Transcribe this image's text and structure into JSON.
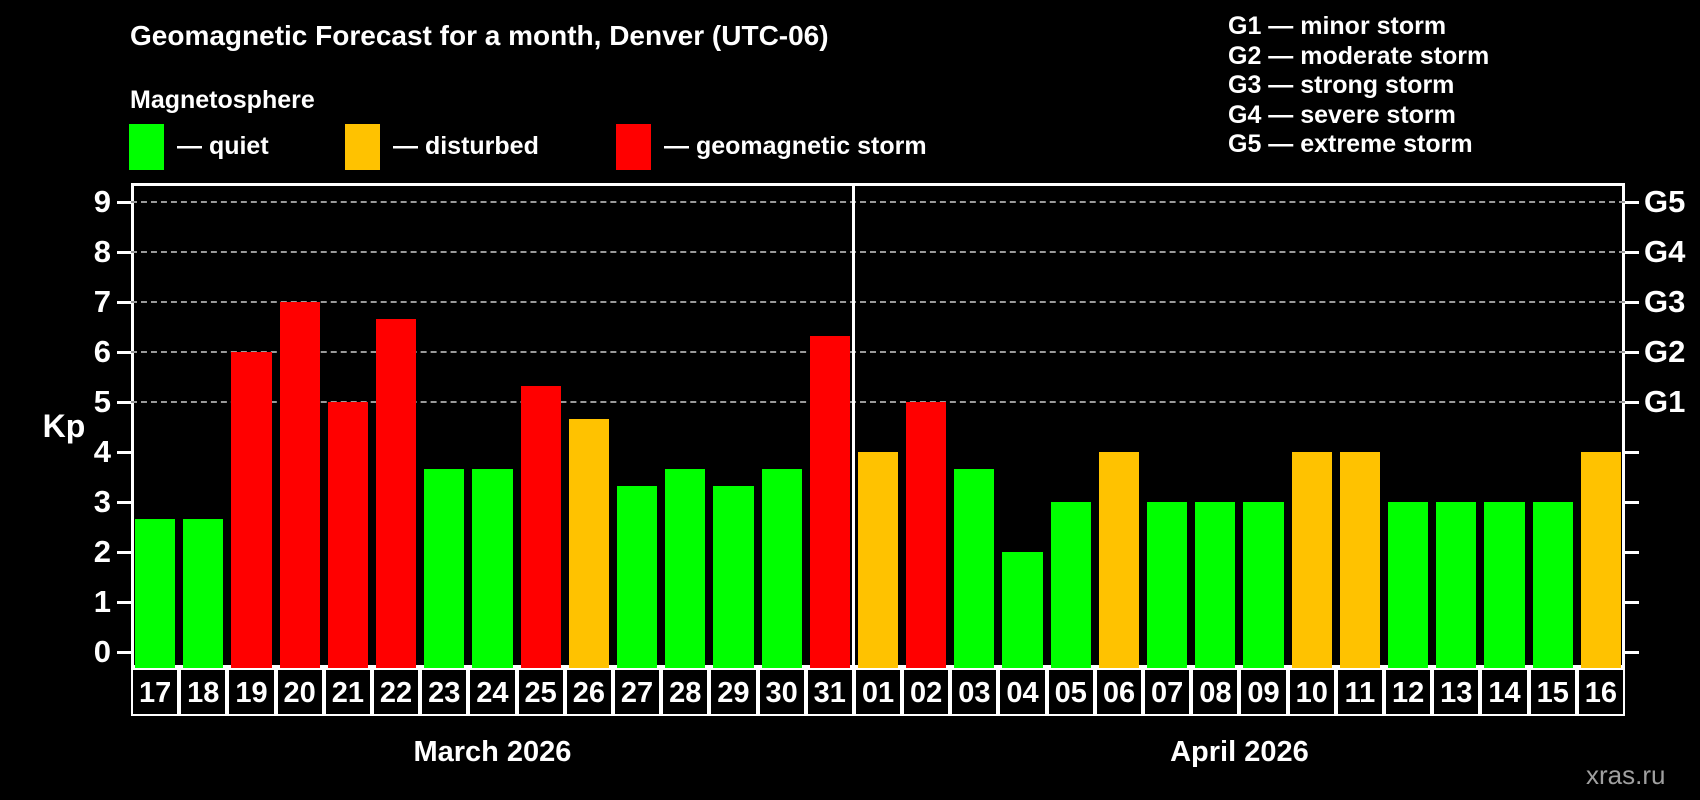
{
  "title": "Geomagnetic Forecast for a month, Denver (UTC-06)",
  "subtitle": "Magnetosphere",
  "watermark": "xras.ru",
  "legend": {
    "items": [
      {
        "key": "quiet",
        "label": "— quiet",
        "color": "#00ff00"
      },
      {
        "key": "disturbed",
        "label": "— disturbed",
        "color": "#ffc200"
      },
      {
        "key": "storm",
        "label": "— geomagnetic storm",
        "color": "#ff0000"
      }
    ]
  },
  "g_legend": {
    "lines": [
      "G1 — minor storm",
      "G2 — moderate storm",
      "G3 — strong storm",
      "G4 — severe storm",
      "G5 — extreme storm"
    ]
  },
  "chart_data": {
    "type": "bar",
    "ylabel": "Kp",
    "ylim": [
      0,
      9
    ],
    "yticks": [
      0,
      1,
      2,
      3,
      4,
      5,
      6,
      7,
      8,
      9
    ],
    "gridlines": [
      5,
      6,
      7,
      8,
      9
    ],
    "grid_color": "#9a9a9a",
    "right_axis_labels": [
      {
        "label": "G1",
        "value": 5
      },
      {
        "label": "G2",
        "value": 6
      },
      {
        "label": "G3",
        "value": 7
      },
      {
        "label": "G4",
        "value": 8
      },
      {
        "label": "G5",
        "value": 9
      }
    ],
    "status_colors": {
      "quiet": "#00ff00",
      "disturbed": "#ffc200",
      "storm": "#ff0000"
    },
    "months": [
      {
        "label": "March 2026",
        "days": [
          {
            "day": "17",
            "kp": 2.67,
            "status": "quiet"
          },
          {
            "day": "18",
            "kp": 2.67,
            "status": "quiet"
          },
          {
            "day": "19",
            "kp": 6.0,
            "status": "storm"
          },
          {
            "day": "20",
            "kp": 7.0,
            "status": "storm"
          },
          {
            "day": "21",
            "kp": 5.0,
            "status": "storm"
          },
          {
            "day": "22",
            "kp": 6.67,
            "status": "storm"
          },
          {
            "day": "23",
            "kp": 3.67,
            "status": "quiet"
          },
          {
            "day": "24",
            "kp": 3.67,
            "status": "quiet"
          },
          {
            "day": "25",
            "kp": 5.33,
            "status": "storm"
          },
          {
            "day": "26",
            "kp": 4.67,
            "status": "disturbed"
          },
          {
            "day": "27",
            "kp": 3.33,
            "status": "quiet"
          },
          {
            "day": "28",
            "kp": 3.67,
            "status": "quiet"
          },
          {
            "day": "29",
            "kp": 3.33,
            "status": "quiet"
          },
          {
            "day": "30",
            "kp": 3.67,
            "status": "quiet"
          },
          {
            "day": "31",
            "kp": 6.33,
            "status": "storm"
          }
        ]
      },
      {
        "label": "April 2026",
        "days": [
          {
            "day": "01",
            "kp": 4.0,
            "status": "disturbed"
          },
          {
            "day": "02",
            "kp": 5.0,
            "status": "storm"
          },
          {
            "day": "03",
            "kp": 3.67,
            "status": "quiet"
          },
          {
            "day": "04",
            "kp": 2.0,
            "status": "quiet"
          },
          {
            "day": "05",
            "kp": 3.0,
            "status": "quiet"
          },
          {
            "day": "06",
            "kp": 4.0,
            "status": "disturbed"
          },
          {
            "day": "07",
            "kp": 3.0,
            "status": "quiet"
          },
          {
            "day": "08",
            "kp": 3.0,
            "status": "quiet"
          },
          {
            "day": "09",
            "kp": 3.0,
            "status": "quiet"
          },
          {
            "day": "10",
            "kp": 4.0,
            "status": "disturbed"
          },
          {
            "day": "11",
            "kp": 4.0,
            "status": "disturbed"
          },
          {
            "day": "12",
            "kp": 3.0,
            "status": "quiet"
          },
          {
            "day": "13",
            "kp": 3.0,
            "status": "quiet"
          },
          {
            "day": "14",
            "kp": 3.0,
            "status": "quiet"
          },
          {
            "day": "15",
            "kp": 3.0,
            "status": "quiet"
          },
          {
            "day": "16",
            "kp": 4.0,
            "status": "disturbed"
          }
        ]
      }
    ]
  }
}
